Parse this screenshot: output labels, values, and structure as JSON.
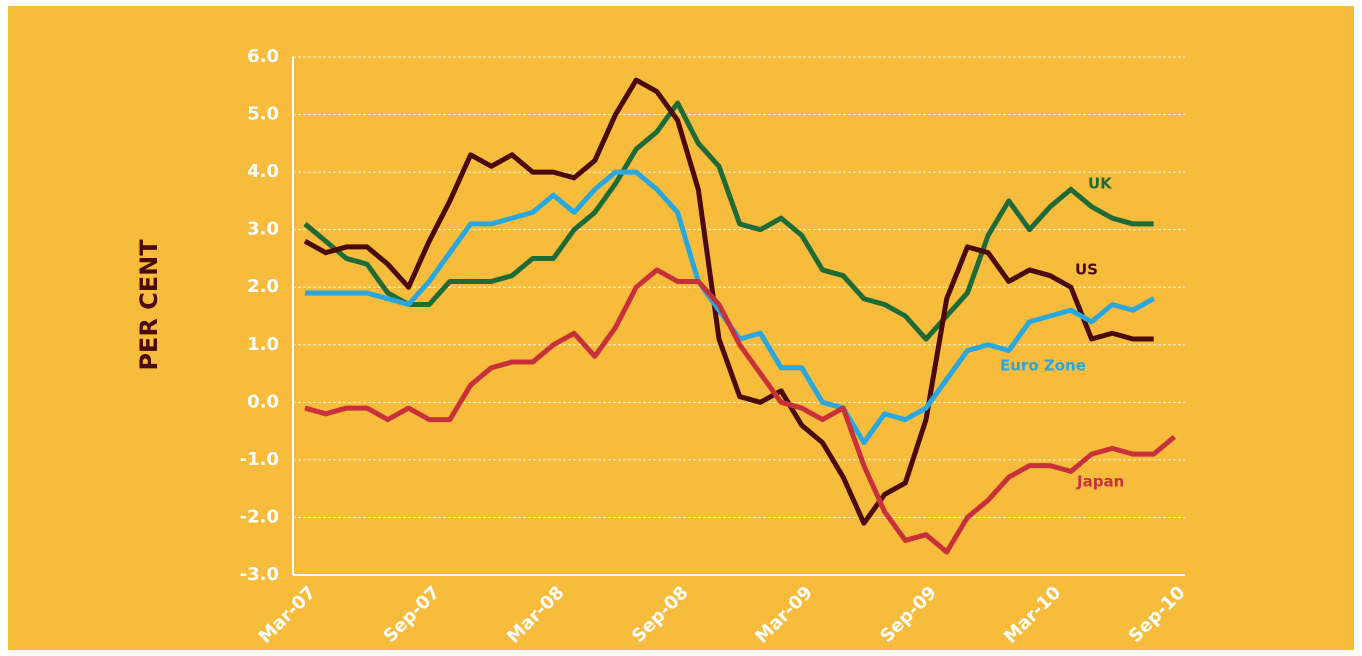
{
  "chart_data": {
    "type": "line",
    "y_label": "PER CENT",
    "categories": [
      "Mar-07",
      null,
      null,
      null,
      null,
      null,
      "Sep-07",
      null,
      null,
      null,
      null,
      null,
      "Mar-08",
      null,
      null,
      null,
      null,
      null,
      "Sep-08",
      null,
      null,
      null,
      null,
      null,
      "Mar-09",
      null,
      null,
      null,
      null,
      null,
      "Sep-09",
      null,
      null,
      null,
      null,
      null,
      "Mar-10",
      null,
      null,
      null,
      null,
      null,
      "Sep-10"
    ],
    "series": [
      {
        "name": "UK",
        "color": "#1e6b37",
        "values": [
          3.1,
          2.8,
          2.5,
          2.4,
          1.9,
          1.7,
          1.7,
          2.1,
          2.1,
          2.1,
          2.2,
          2.5,
          2.5,
          3.0,
          3.3,
          3.8,
          4.4,
          4.7,
          5.2,
          4.5,
          4.1,
          3.1,
          3.0,
          3.2,
          2.9,
          2.3,
          2.2,
          1.8,
          1.7,
          1.5,
          1.1,
          1.5,
          1.9,
          2.9,
          3.5,
          3.0,
          3.4,
          3.7,
          3.4,
          3.2,
          3.1,
          3.1,
          null
        ]
      },
      {
        "name": "US",
        "color": "#4a0a0a",
        "values": [
          2.8,
          2.6,
          2.7,
          2.7,
          2.4,
          2.0,
          2.8,
          3.5,
          4.3,
          4.1,
          4.3,
          4.0,
          4.0,
          3.9,
          4.2,
          5.0,
          5.6,
          5.4,
          4.9,
          3.7,
          1.1,
          0.1,
          0.0,
          0.2,
          -0.4,
          -0.7,
          -1.3,
          -2.1,
          -1.6,
          -1.4,
          -0.3,
          1.8,
          2.7,
          2.6,
          2.1,
          2.3,
          2.2,
          2.0,
          1.1,
          1.2,
          1.1,
          1.1,
          null
        ]
      },
      {
        "name": "Euro Zone",
        "color": "#2aa7de",
        "values": [
          1.9,
          1.9,
          1.9,
          1.9,
          1.8,
          1.7,
          2.1,
          2.6,
          3.1,
          3.1,
          3.2,
          3.3,
          3.6,
          3.3,
          3.7,
          4.0,
          4.0,
          3.7,
          3.3,
          2.1,
          1.6,
          1.1,
          1.2,
          0.6,
          0.6,
          0.0,
          -0.1,
          -0.7,
          -0.2,
          -0.3,
          -0.1,
          0.4,
          0.9,
          1.0,
          0.9,
          1.4,
          1.5,
          1.6,
          1.4,
          1.7,
          1.6,
          1.8,
          null
        ]
      },
      {
        "name": "Japan",
        "color": "#c8313a",
        "values": [
          -0.1,
          -0.2,
          -0.1,
          -0.1,
          -0.3,
          -0.1,
          -0.3,
          -0.3,
          0.3,
          0.6,
          0.7,
          0.7,
          1.0,
          1.2,
          0.8,
          1.3,
          2.0,
          2.3,
          2.1,
          2.1,
          1.7,
          1.0,
          0.5,
          0.0,
          -0.1,
          -0.3,
          -0.1,
          -1.1,
          -1.9,
          -2.4,
          -2.3,
          -2.6,
          -2.0,
          -1.7,
          -1.3,
          -1.1,
          -1.1,
          -1.2,
          -0.9,
          -0.8,
          -0.9,
          -0.9,
          -0.6
        ]
      }
    ],
    "ylim": [
      -3,
      6
    ],
    "yticks": [
      {
        "value": -3,
        "label": "-3.0"
      },
      {
        "value": -2,
        "label": "-2.0"
      },
      {
        "value": -1,
        "label": "-1.0"
      },
      {
        "value": 0,
        "label": "0.0"
      },
      {
        "value": 1,
        "label": "1.0"
      },
      {
        "value": 2,
        "label": "2.0"
      },
      {
        "value": 3,
        "label": "3.0"
      },
      {
        "value": 4,
        "label": "4.0"
      },
      {
        "value": 5,
        "label": "5.0"
      },
      {
        "value": 6,
        "label": "6.0"
      }
    ],
    "grid": true
  }
}
